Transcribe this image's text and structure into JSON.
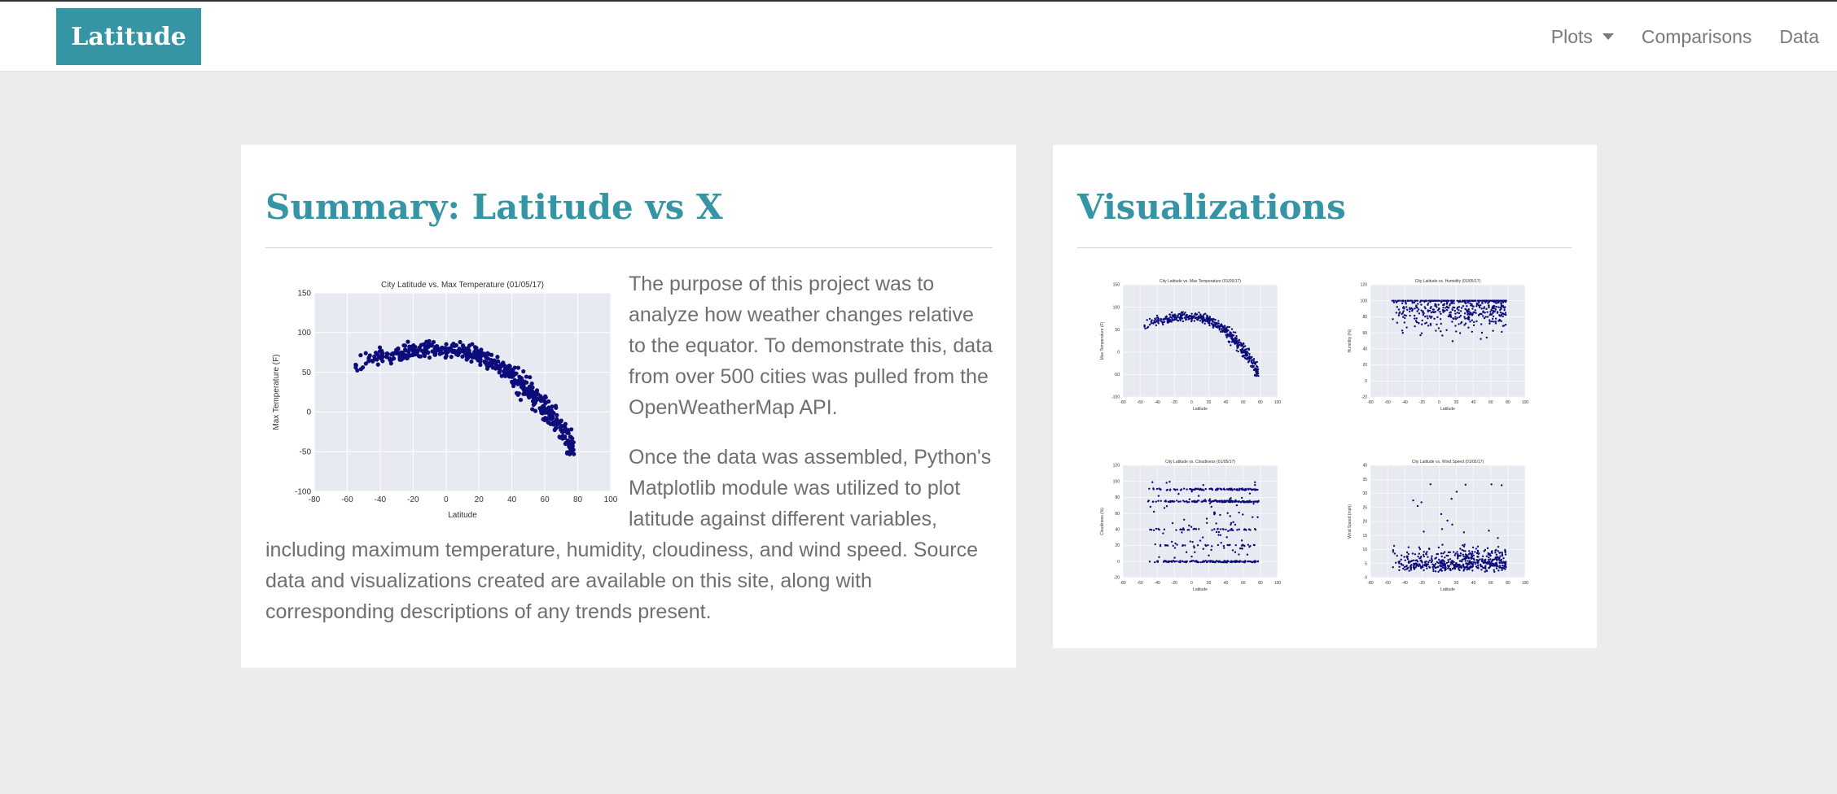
{
  "navbar": {
    "brand": "Latitude",
    "links": [
      {
        "label": "Plots",
        "dropdown": true
      },
      {
        "label": "Comparisons",
        "dropdown": false
      },
      {
        "label": "Data",
        "dropdown": false
      }
    ]
  },
  "summary": {
    "title": "Summary: Latitude vs X",
    "paragraph1": "The purpose of this project was to analyze how weather changes relative to the equator. To demonstrate this, data from over 500 cities was pulled from the OpenWeatherMap API.",
    "paragraph2": "Once the data was assembled, Python's Matplotlib module was utilized to plot latitude against different variables, including maximum temperature, humidity, cloudiness, and wind speed. Source data and visualizations created are available on this site, along with corresponding descriptions of any trends present."
  },
  "visualizations": {
    "title": "Visualizations"
  },
  "colors": {
    "accent": "#3595a5",
    "plot_bg": "#e8eaf2",
    "point": "#0c0c7a",
    "text": "#6f6f6f"
  },
  "chart_data": [
    {
      "type": "scatter",
      "title": "City Latitude vs. Max Temperature (01/05/17)",
      "xlabel": "Latitude",
      "ylabel": "Max Temperature (F)",
      "xlim": [
        -80,
        100
      ],
      "ylim": [
        -100,
        150
      ],
      "xticks": [
        -80,
        -60,
        -40,
        -20,
        0,
        20,
        40,
        60,
        80,
        100
      ],
      "yticks": [
        -100,
        -50,
        0,
        50,
        100,
        150
      ],
      "grid": true,
      "trend": "peak near 75-85 F around latitude -20 to 10, falling to about -50 F near latitude 70"
    },
    {
      "type": "scatter",
      "title": "City Latitude vs. Humidity (01/05/17)",
      "xlabel": "Latitude",
      "ylabel": "Humidity (%)",
      "xlim": [
        -80,
        100
      ],
      "ylim": [
        -20,
        120
      ],
      "xticks": [
        -80,
        -60,
        -40,
        -20,
        0,
        20,
        40,
        60,
        80,
        100
      ],
      "yticks": [
        -20,
        0,
        20,
        40,
        60,
        80,
        100,
        120
      ],
      "grid": true,
      "trend": "values concentrated between 60 and 100 %, dense band at 100 %"
    },
    {
      "type": "scatter",
      "title": "City Latitude vs. Cloudiness (01/05/17)",
      "xlabel": "Latitude",
      "ylabel": "Cloudiness (%)",
      "xlim": [
        -80,
        100
      ],
      "ylim": [
        -20,
        120
      ],
      "xticks": [
        -80,
        -60,
        -40,
        -20,
        0,
        20,
        40,
        60,
        80,
        100
      ],
      "yticks": [
        -20,
        0,
        20,
        40,
        60,
        80,
        100,
        120
      ],
      "grid": true,
      "trend": "values form horizontal bands at 0, 20, 40, 75 and 90 %"
    },
    {
      "type": "scatter",
      "title": "City Latitude vs. Wind Speed (01/05/17)",
      "xlabel": "Latitude",
      "ylabel": "Wind Speed (mph)",
      "xlim": [
        -80,
        100
      ],
      "ylim": [
        0,
        40
      ],
      "xticks": [
        -80,
        -60,
        -40,
        -20,
        0,
        20,
        40,
        60,
        80,
        100
      ],
      "yticks": [
        0,
        5,
        10,
        15,
        20,
        25,
        30,
        35,
        40
      ],
      "grid": true,
      "trend": "most cities between 2 and 10 mph, a few up to about 35 mph"
    }
  ]
}
